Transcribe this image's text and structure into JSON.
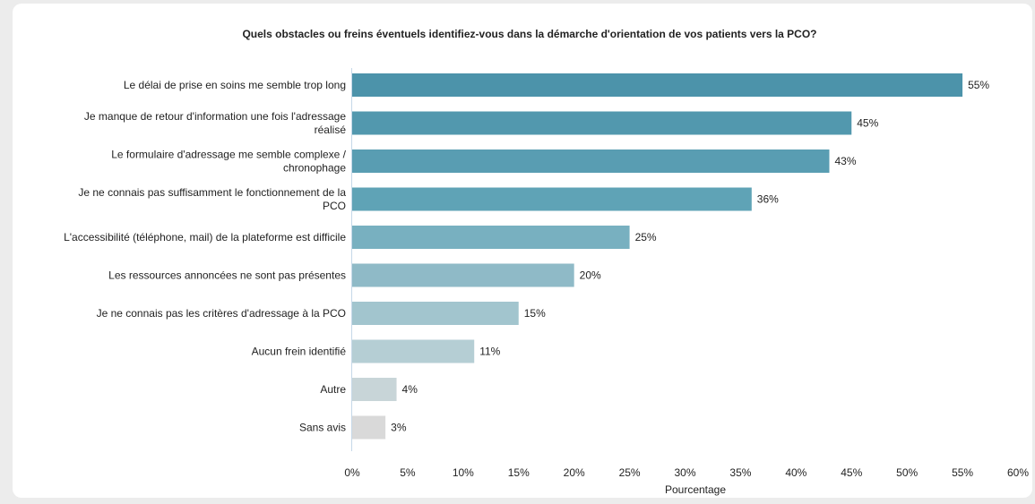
{
  "chart_data": {
    "type": "bar",
    "orientation": "horizontal",
    "title": "Quels obstacles ou freins éventuels identifiez-vous dans la démarche d'orientation de vos patients vers la PCO?",
    "xlabel": "Pourcentage",
    "ylabel": "",
    "xlim": [
      0,
      60
    ],
    "tick_step": 5,
    "tick_suffix": "%",
    "grid": false,
    "categories": [
      [
        "Le délai de prise en soins me semble trop long"
      ],
      [
        "Je manque de retour d'information une fois l'adressage",
        "réalisé"
      ],
      [
        "Le formulaire d'adressage me semble complexe /",
        "chronophage"
      ],
      [
        "Je ne connais pas suffisamment le fonctionnement de la",
        "PCO"
      ],
      [
        "L'accessibilité (téléphone, mail) de la plateforme est difficile"
      ],
      [
        "Les ressources annoncées ne sont pas présentes"
      ],
      [
        "Je ne connais pas les critères d'adressage à la PCO"
      ],
      [
        "Aucun frein identifié"
      ],
      [
        "Autre"
      ],
      [
        "Sans avis"
      ]
    ],
    "values": [
      55,
      45,
      43,
      36,
      25,
      20,
      15,
      11,
      4,
      3
    ],
    "data_labels": [
      "55%",
      "45%",
      "43%",
      "36%",
      "25%",
      "20%",
      "15%",
      "11%",
      "4%",
      "3%"
    ],
    "colors": [
      "#4c93aa",
      "#5298ae",
      "#599db2",
      "#5fa3b6",
      "#78b0c0",
      "#8fbac7",
      "#a2c5ce",
      "#b5ced4",
      "#c8d5d8",
      "#d9d9d9"
    ]
  }
}
